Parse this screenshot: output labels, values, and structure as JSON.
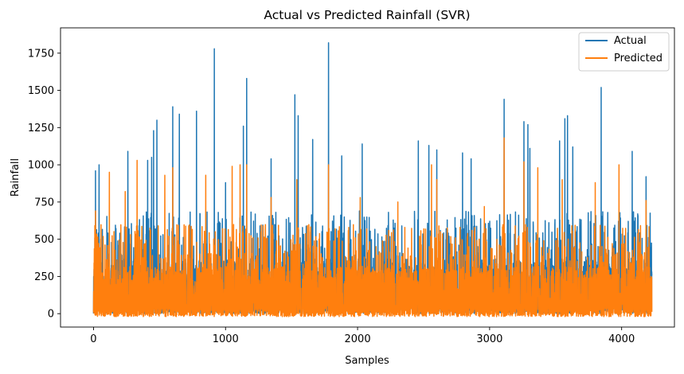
{
  "chart_data": {
    "type": "line",
    "title": "Actual vs Predicted Rainfall (SVR)",
    "xlabel": "Samples",
    "ylabel": "Rainfall",
    "xlim": [
      -250,
      4400
    ],
    "ylim": [
      -90,
      1920
    ],
    "xticks": [
      0,
      1000,
      2000,
      3000,
      4000
    ],
    "yticks": [
      0,
      250,
      500,
      750,
      1000,
      1250,
      1500,
      1750
    ],
    "n_points": 4230,
    "grid": false,
    "legend_position": "top-right",
    "series": [
      {
        "name": "Actual",
        "color": "#1f77b4",
        "peaks": [
          [
            15,
            960
          ],
          [
            42,
            1000
          ],
          [
            260,
            1090
          ],
          [
            410,
            1030
          ],
          [
            440,
            1050
          ],
          [
            455,
            1230
          ],
          [
            480,
            1300
          ],
          [
            600,
            1390
          ],
          [
            650,
            1340
          ],
          [
            780,
            1360
          ],
          [
            915,
            1780
          ],
          [
            1000,
            880
          ],
          [
            1135,
            1260
          ],
          [
            1160,
            1580
          ],
          [
            1345,
            1040
          ],
          [
            1525,
            1470
          ],
          [
            1550,
            1330
          ],
          [
            1660,
            1170
          ],
          [
            1780,
            1820
          ],
          [
            1880,
            1060
          ],
          [
            2035,
            1140
          ],
          [
            2460,
            1160
          ],
          [
            2540,
            1130
          ],
          [
            2600,
            1100
          ],
          [
            2795,
            1080
          ],
          [
            2860,
            1040
          ],
          [
            3110,
            1440
          ],
          [
            3260,
            1290
          ],
          [
            3290,
            1270
          ],
          [
            3305,
            1110
          ],
          [
            3530,
            1160
          ],
          [
            3570,
            1310
          ],
          [
            3590,
            1330
          ],
          [
            3630,
            1120
          ],
          [
            3845,
            1520
          ],
          [
            4080,
            1090
          ],
          [
            4185,
            920
          ]
        ],
        "typical_upper": 600,
        "min": 0
      },
      {
        "name": "Predicted",
        "color": "#ff7f0e",
        "peaks": [
          [
            15,
            690
          ],
          [
            120,
            950
          ],
          [
            240,
            820
          ],
          [
            330,
            1030
          ],
          [
            540,
            930
          ],
          [
            600,
            980
          ],
          [
            850,
            930
          ],
          [
            1050,
            990
          ],
          [
            1110,
            1000
          ],
          [
            1160,
            1000
          ],
          [
            1345,
            780
          ],
          [
            1540,
            900
          ],
          [
            1780,
            1000
          ],
          [
            2020,
            780
          ],
          [
            2305,
            750
          ],
          [
            2560,
            1000
          ],
          [
            2600,
            900
          ],
          [
            2960,
            720
          ],
          [
            3110,
            1180
          ],
          [
            3260,
            1020
          ],
          [
            3365,
            980
          ],
          [
            3550,
            900
          ],
          [
            3800,
            880
          ],
          [
            3980,
            1000
          ],
          [
            4185,
            760
          ]
        ],
        "typical_upper": 500,
        "min": -20
      }
    ]
  }
}
